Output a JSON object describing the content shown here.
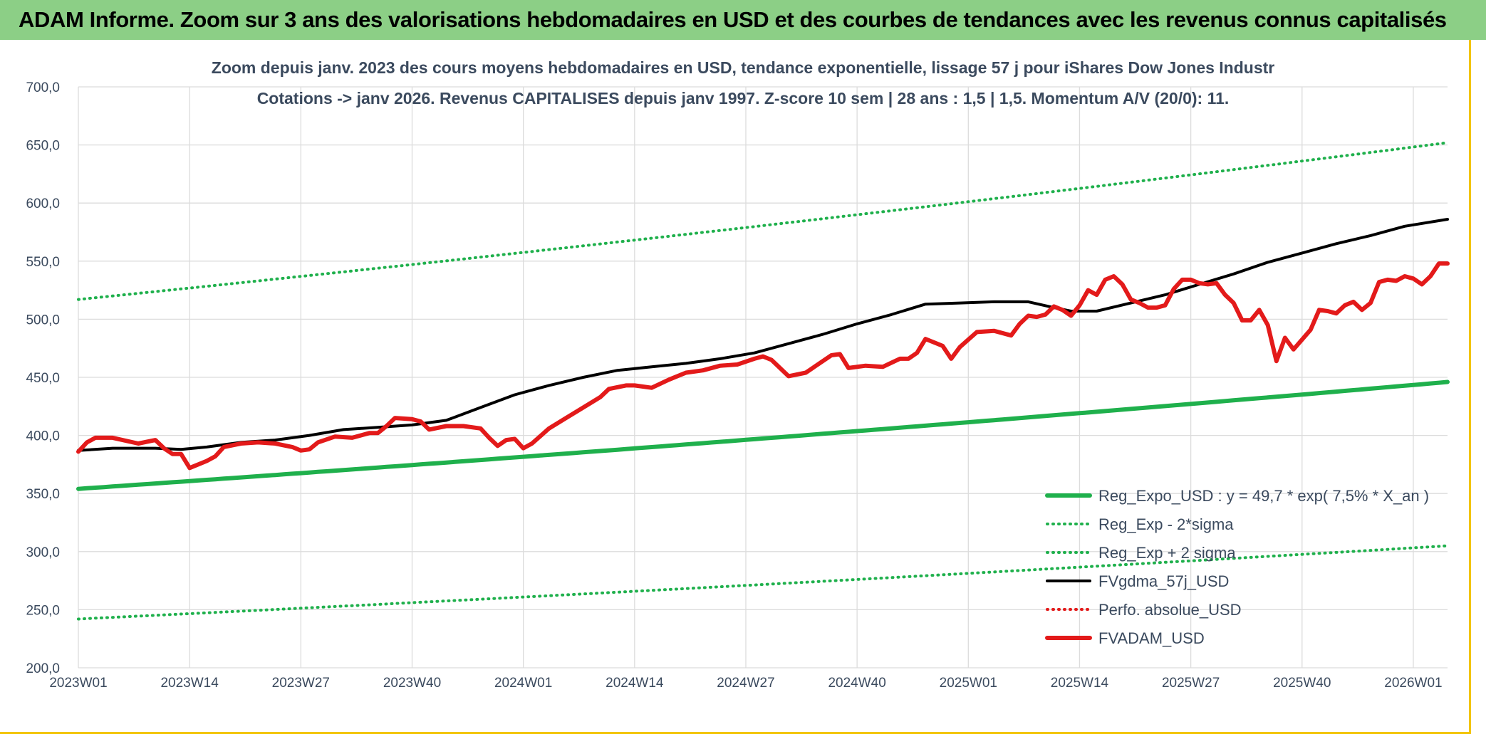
{
  "banner": {
    "title": "ADAM Informe. Zoom sur 3 ans des valorisations hebdomadaires en USD et des courbes de tendances avec les revenus connus capitalisés",
    "background": "#8ccf86"
  },
  "chart_data": {
    "type": "line",
    "title_line1": "Zoom depuis janv. 2023 des cours moyens hebdomadaires en USD, tendance exponentielle, lissage 57 j pour iShares Dow Jones Industr",
    "title_line2": "Cotations -> janv 2026. Revenus CAPITALISES depuis janv 1997. Z-score 10 sem | 28 ans : 1,5 | 1,5. Momentum A/V (20/0): 11.",
    "ylim": [
      200,
      700
    ],
    "y_ticks": [
      "200,0",
      "250,0",
      "300,0",
      "350,0",
      "400,0",
      "450,0",
      "500,0",
      "550,0",
      "600,0",
      "650,0",
      "700,0"
    ],
    "x_range": [
      1,
      161
    ],
    "x_ticks": [
      {
        "x": 1,
        "label": "2023W01"
      },
      {
        "x": 14,
        "label": "2023W14"
      },
      {
        "x": 27,
        "label": "2023W27"
      },
      {
        "x": 40,
        "label": "2023W40"
      },
      {
        "x": 53,
        "label": "2024W01"
      },
      {
        "x": 66,
        "label": "2024W14"
      },
      {
        "x": 79,
        "label": "2024W27"
      },
      {
        "x": 92,
        "label": "2024W40"
      },
      {
        "x": 105,
        "label": "2025W01"
      },
      {
        "x": 118,
        "label": "2025W14"
      },
      {
        "x": 131,
        "label": "2025W27"
      },
      {
        "x": 144,
        "label": "2025W40"
      },
      {
        "x": 157,
        "label": "2026W01"
      }
    ],
    "series": [
      {
        "name": "Reg_Expo_USD : y = 49,7 * exp( 7,5% *  X_an )",
        "color": "#1fb04c",
        "style": "solid-thick",
        "points": [
          [
            1,
            354
          ],
          [
            161,
            446
          ]
        ],
        "curve": "exp"
      },
      {
        "name": "Reg_Exp - 2*sigma",
        "color": "#1fb04c",
        "style": "dotted",
        "points": [
          [
            1,
            242
          ],
          [
            161,
            305
          ]
        ],
        "curve": "exp"
      },
      {
        "name": "Reg_Exp + 2 sigma",
        "color": "#1fb04c",
        "style": "dotted",
        "points": [
          [
            1,
            517
          ],
          [
            161,
            652
          ]
        ],
        "curve": "exp"
      },
      {
        "name": "FVgdma_57j_USD",
        "color": "#000000",
        "style": "solid",
        "points": [
          [
            1,
            387
          ],
          [
            5,
            389
          ],
          [
            10,
            389
          ],
          [
            13,
            388
          ],
          [
            16,
            390
          ],
          [
            20,
            394
          ],
          [
            24,
            396
          ],
          [
            28,
            400
          ],
          [
            32,
            405
          ],
          [
            36,
            407
          ],
          [
            40,
            409
          ],
          [
            44,
            413
          ],
          [
            48,
            424
          ],
          [
            52,
            435
          ],
          [
            56,
            443
          ],
          [
            60,
            450
          ],
          [
            64,
            456
          ],
          [
            68,
            459
          ],
          [
            72,
            462
          ],
          [
            76,
            466
          ],
          [
            80,
            471
          ],
          [
            84,
            479
          ],
          [
            88,
            487
          ],
          [
            92,
            496
          ],
          [
            96,
            504
          ],
          [
            100,
            513
          ],
          [
            104,
            514
          ],
          [
            108,
            515
          ],
          [
            112,
            515
          ],
          [
            115,
            510
          ],
          [
            117,
            507
          ],
          [
            120,
            507
          ],
          [
            124,
            514
          ],
          [
            128,
            521
          ],
          [
            132,
            530
          ],
          [
            136,
            539
          ],
          [
            140,
            549
          ],
          [
            144,
            557
          ],
          [
            148,
            565
          ],
          [
            152,
            572
          ],
          [
            156,
            580
          ],
          [
            161,
            586
          ]
        ]
      },
      {
        "name": "Perfo. absolue_USD",
        "color": "#e31a1a",
        "style": "dotted",
        "points": []
      },
      {
        "name": "FVADAM_USD",
        "color": "#e31a1a",
        "style": "solid-thick",
        "points": [
          [
            1,
            386
          ],
          [
            2,
            394
          ],
          [
            3,
            398
          ],
          [
            5,
            398
          ],
          [
            8,
            393
          ],
          [
            10,
            396
          ],
          [
            11,
            389
          ],
          [
            12,
            384
          ],
          [
            13,
            384
          ],
          [
            14,
            372
          ],
          [
            16,
            378
          ],
          [
            17,
            382
          ],
          [
            18,
            390
          ],
          [
            20,
            393
          ],
          [
            22,
            394
          ],
          [
            24,
            393
          ],
          [
            26,
            390
          ],
          [
            27,
            387
          ],
          [
            28,
            388
          ],
          [
            29,
            394
          ],
          [
            31,
            399
          ],
          [
            33,
            398
          ],
          [
            35,
            402
          ],
          [
            36,
            402
          ],
          [
            37,
            408
          ],
          [
            38,
            415
          ],
          [
            40,
            414
          ],
          [
            41,
            412
          ],
          [
            42,
            405
          ],
          [
            44,
            408
          ],
          [
            46,
            408
          ],
          [
            48,
            406
          ],
          [
            49,
            398
          ],
          [
            50,
            391
          ],
          [
            51,
            396
          ],
          [
            52,
            397
          ],
          [
            53,
            389
          ],
          [
            54,
            393
          ],
          [
            56,
            406
          ],
          [
            58,
            415
          ],
          [
            60,
            424
          ],
          [
            62,
            433
          ],
          [
            63,
            440
          ],
          [
            65,
            443
          ],
          [
            66,
            443
          ],
          [
            68,
            441
          ],
          [
            70,
            448
          ],
          [
            72,
            454
          ],
          [
            74,
            456
          ],
          [
            76,
            460
          ],
          [
            78,
            461
          ],
          [
            80,
            466
          ],
          [
            81,
            468
          ],
          [
            82,
            465
          ],
          [
            84,
            451
          ],
          [
            86,
            454
          ],
          [
            87,
            459
          ],
          [
            89,
            469
          ],
          [
            90,
            470
          ],
          [
            91,
            458
          ],
          [
            93,
            460
          ],
          [
            95,
            459
          ],
          [
            97,
            466
          ],
          [
            98,
            466
          ],
          [
            99,
            471
          ],
          [
            100,
            483
          ],
          [
            101,
            480
          ],
          [
            102,
            477
          ],
          [
            103,
            466
          ],
          [
            104,
            476
          ],
          [
            106,
            489
          ],
          [
            108,
            490
          ],
          [
            110,
            486
          ],
          [
            111,
            496
          ],
          [
            112,
            503
          ],
          [
            113,
            502
          ],
          [
            114,
            504
          ],
          [
            115,
            511
          ],
          [
            116,
            508
          ],
          [
            117,
            503
          ],
          [
            118,
            512
          ],
          [
            119,
            525
          ],
          [
            120,
            521
          ],
          [
            121,
            534
          ],
          [
            122,
            537
          ],
          [
            123,
            530
          ],
          [
            124,
            517
          ],
          [
            125,
            514
          ],
          [
            126,
            510
          ],
          [
            127,
            510
          ],
          [
            128,
            512
          ],
          [
            129,
            526
          ],
          [
            130,
            534
          ],
          [
            131,
            534
          ],
          [
            132,
            531
          ],
          [
            133,
            530
          ],
          [
            134,
            531
          ],
          [
            135,
            521
          ],
          [
            136,
            514
          ],
          [
            137,
            499
          ],
          [
            138,
            499
          ],
          [
            139,
            508
          ],
          [
            140,
            495
          ],
          [
            141,
            464
          ],
          [
            142,
            484
          ],
          [
            143,
            474
          ],
          [
            145,
            491
          ],
          [
            146,
            508
          ],
          [
            147,
            507
          ],
          [
            148,
            505
          ],
          [
            149,
            512
          ],
          [
            150,
            515
          ],
          [
            151,
            508
          ],
          [
            152,
            514
          ],
          [
            153,
            532
          ],
          [
            154,
            534
          ],
          [
            155,
            533
          ],
          [
            156,
            537
          ],
          [
            157,
            535
          ],
          [
            158,
            530
          ],
          [
            159,
            537
          ],
          [
            160,
            548
          ],
          [
            161,
            548
          ]
        ]
      }
    ],
    "legend": {
      "placement": "bottom-right"
    },
    "grid": true
  }
}
